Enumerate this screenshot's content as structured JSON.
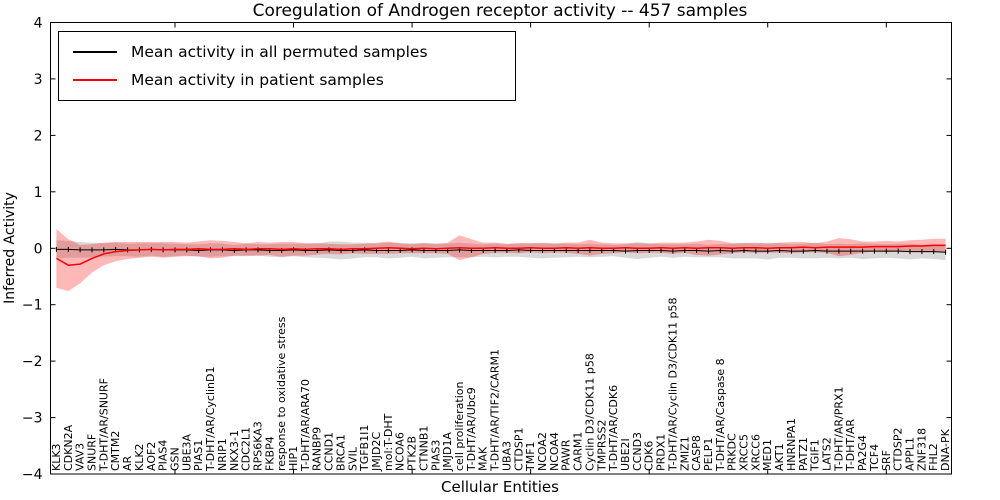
{
  "figure": {
    "title": "Coregulation of Androgen receptor activity -- 457 samples",
    "xlabel": "Cellular Entities",
    "ylabel": "Inferred Activity"
  },
  "legend": {
    "position": "upper left",
    "items": [
      {
        "label": "Mean activity in all permuted samples",
        "color": "#000000"
      },
      {
        "label": "Mean activity in patient samples",
        "color": "#ff0000"
      }
    ]
  },
  "chart_data": {
    "type": "line",
    "title": "Coregulation of Androgen receptor activity -- 457 samples",
    "xlabel": "Cellular Entities",
    "ylabel": "Inferred Activity",
    "ylim": [
      -4,
      4
    ],
    "yticks": [
      "4",
      "3",
      "2",
      "1",
      "0",
      "−1",
      "−2",
      "−3",
      "−4"
    ],
    "xtick_interval": 10,
    "grid": false,
    "legend_position": "upper left",
    "categories": [
      "KLK3",
      "CDKN2A",
      "VAV3",
      "SNURF",
      "T-DHT/AR/SNURF",
      "CMTM2",
      "AR",
      "KLK2",
      "AOF2",
      "PIAS4",
      "GSN",
      "UBE3A",
      "PIAS1",
      "T-DHT/AR/CyclinD1",
      "NRIP1",
      "NKX3-1",
      "CDC2L1",
      "RPS6KA3",
      "FKBP4",
      "response to oxidative stress",
      "HIP1",
      "T-DHT/AR/ARA70",
      "RANBP9",
      "CCND1",
      "BRCA1",
      "SVIL",
      "TGFB1I1",
      "JMJD2C",
      "mol:T-DHT",
      "NCOA6",
      "PTK2B",
      "CTNNB1",
      "PIAS3",
      "JMJD1A",
      "cell proliferation",
      "T-DHT/AR/Ubc9",
      "MAK",
      "T-DHT/AR/TIF2/CARM1",
      "UBA3",
      "CTDSP1",
      "TMF1",
      "NCOA2",
      "NCOA4",
      "PAWR",
      "CARM1",
      "Cyclin D3/CDK11 p58",
      "TMPRSS2",
      "T-DHT/AR/CDK6",
      "UBE2I",
      "CCND3",
      "CDK6",
      "PRDX1",
      "T-DHT/AR/Cyclin D3/CDK11 p58",
      "ZMIZ1",
      "CASP8",
      "PELP1",
      "T-DHT/AR/Caspase 8",
      "PRKDC",
      "XRCC5",
      "XRCC6",
      "MED1",
      "AKT1",
      "HNRNPA1",
      "PATZ1",
      "TGIF1",
      "LATS2",
      "T-DHT/AR/PRX1",
      "T-DHT/AR",
      "PA2G4",
      "TCF4",
      "SRF",
      "CTDSP2",
      "APPL1",
      "ZNF318",
      "FHL2",
      "DNA-PK"
    ],
    "series": [
      {
        "name": "Mean activity in all permuted samples",
        "color": "#000000",
        "line_width": 1,
        "band_color": "rgba(128,128,128,0.30)",
        "markers": "tick",
        "mean": [
          -0.02,
          -0.02,
          -0.03,
          -0.03,
          -0.03,
          -0.02,
          -0.03,
          -0.03,
          -0.02,
          -0.03,
          -0.03,
          -0.03,
          -0.04,
          -0.03,
          -0.03,
          -0.04,
          -0.03,
          -0.03,
          -0.04,
          -0.04,
          -0.03,
          -0.04,
          -0.04,
          -0.03,
          -0.04,
          -0.04,
          -0.03,
          -0.04,
          -0.04,
          -0.04,
          -0.03,
          -0.04,
          -0.04,
          -0.04,
          -0.03,
          -0.04,
          -0.04,
          -0.04,
          -0.04,
          -0.03,
          -0.04,
          -0.04,
          -0.04,
          -0.04,
          -0.04,
          -0.04,
          -0.04,
          -0.04,
          -0.05,
          -0.04,
          -0.04,
          -0.04,
          -0.05,
          -0.04,
          -0.04,
          -0.05,
          -0.04,
          -0.05,
          -0.04,
          -0.05,
          -0.05,
          -0.04,
          -0.05,
          -0.05,
          -0.04,
          -0.05,
          -0.05,
          -0.05,
          -0.05,
          -0.05,
          -0.05,
          -0.05,
          -0.06,
          -0.06,
          -0.06,
          -0.07
        ],
        "std": [
          0.16,
          0.15,
          0.14,
          0.13,
          0.12,
          0.12,
          0.11,
          0.12,
          0.11,
          0.12,
          0.11,
          0.1,
          0.11,
          0.12,
          0.11,
          0.1,
          0.11,
          0.1,
          0.11,
          0.12,
          0.11,
          0.12,
          0.13,
          0.15,
          0.16,
          0.14,
          0.13,
          0.12,
          0.14,
          0.13,
          0.12,
          0.14,
          0.13,
          0.12,
          0.13,
          0.12,
          0.11,
          0.12,
          0.11,
          0.12,
          0.13,
          0.14,
          0.13,
          0.12,
          0.11,
          0.12,
          0.11,
          0.1,
          0.12,
          0.15,
          0.13,
          0.11,
          0.12,
          0.11,
          0.12,
          0.11,
          0.12,
          0.13,
          0.14,
          0.13,
          0.15,
          0.13,
          0.12,
          0.13,
          0.14,
          0.12,
          0.13,
          0.12,
          0.14,
          0.13,
          0.12,
          0.13,
          0.14,
          0.12,
          0.13,
          0.14
        ]
      },
      {
        "name": "Mean activity in patient samples",
        "color": "#ff0000",
        "line_width": 1.5,
        "band_color": "rgba(255,0,0,0.28)",
        "markers": "none",
        "mean": [
          -0.18,
          -0.3,
          -0.28,
          -0.18,
          -0.1,
          -0.06,
          -0.04,
          -0.03,
          -0.02,
          -0.03,
          -0.02,
          -0.02,
          -0.01,
          -0.02,
          -0.02,
          -0.01,
          -0.02,
          -0.01,
          -0.01,
          -0.02,
          -0.01,
          -0.02,
          -0.01,
          -0.01,
          -0.02,
          -0.01,
          -0.01,
          0.0,
          0.01,
          0.0,
          -0.01,
          0.0,
          -0.01,
          0.0,
          0.01,
          0.0,
          0.0,
          0.01,
          0.0,
          0.0,
          0.01,
          0.0,
          0.0,
          0.01,
          0.0,
          0.01,
          0.0,
          0.0,
          0.01,
          0.0,
          0.0,
          0.01,
          0.0,
          0.01,
          0.0,
          0.01,
          0.01,
          0.0,
          0.01,
          0.01,
          0.0,
          0.01,
          0.01,
          0.02,
          0.01,
          0.02,
          0.02,
          0.02,
          0.02,
          0.03,
          0.03,
          0.03,
          0.04,
          0.04,
          0.05,
          0.05
        ],
        "std": [
          0.52,
          0.46,
          0.34,
          0.25,
          0.2,
          0.17,
          0.15,
          0.14,
          0.13,
          0.14,
          0.13,
          0.12,
          0.13,
          0.16,
          0.15,
          0.12,
          0.11,
          0.12,
          0.11,
          0.13,
          0.12,
          0.11,
          0.1,
          0.09,
          0.09,
          0.08,
          0.09,
          0.1,
          0.11,
          0.09,
          0.08,
          0.09,
          0.08,
          0.1,
          0.22,
          0.16,
          0.1,
          0.09,
          0.08,
          0.09,
          0.08,
          0.09,
          0.08,
          0.09,
          0.1,
          0.14,
          0.1,
          0.09,
          0.08,
          0.09,
          0.08,
          0.09,
          0.1,
          0.09,
          0.12,
          0.14,
          0.12,
          0.09,
          0.08,
          0.09,
          0.08,
          0.09,
          0.1,
          0.09,
          0.08,
          0.1,
          0.16,
          0.14,
          0.1,
          0.09,
          0.1,
          0.09,
          0.1,
          0.11,
          0.12,
          0.12
        ]
      }
    ]
  }
}
